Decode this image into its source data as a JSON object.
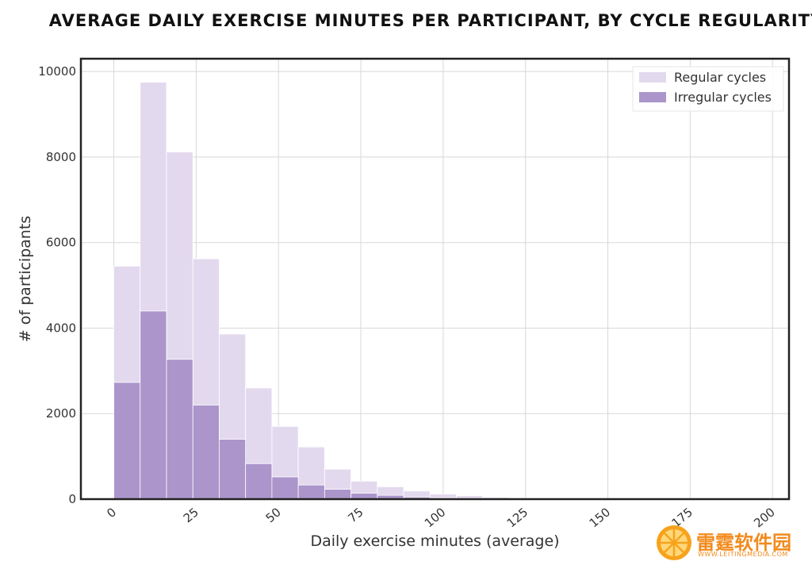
{
  "chart_data": {
    "type": "bar",
    "title": "Average daily exercise minutes per participant, by cycle regularity",
    "xlabel": "Daily exercise minutes (average)",
    "ylabel": "# of participants",
    "xlim": [
      -10,
      205
    ],
    "ylim": [
      0,
      10300
    ],
    "x_ticks": [
      0,
      25,
      50,
      75,
      100,
      125,
      150,
      175,
      200
    ],
    "y_ticks": [
      0,
      2000,
      4000,
      6000,
      8000,
      10000
    ],
    "bin_width": 8,
    "bin_starts": [
      0,
      8,
      16,
      24,
      32,
      40,
      48,
      56,
      64,
      72,
      80,
      88,
      96,
      104,
      112,
      120,
      128
    ],
    "grid": true,
    "legend_position": "top-right",
    "series": [
      {
        "name": "Regular cycles",
        "color": "#e3d9ee",
        "values": [
          5450,
          9750,
          8120,
          5620,
          3860,
          2600,
          1700,
          1220,
          700,
          420,
          290,
          190,
          120,
          80,
          40,
          20,
          10
        ]
      },
      {
        "name": "Irregular cycles",
        "color": "#ab95cb",
        "values": [
          2730,
          4400,
          3270,
          2200,
          1400,
          830,
          520,
          330,
          230,
          140,
          90,
          50,
          30,
          20,
          10,
          5,
          2
        ]
      }
    ]
  },
  "watermark": {
    "name": "雷霆软件园",
    "url": "WWW.LEITINGMEDIA.COM"
  }
}
